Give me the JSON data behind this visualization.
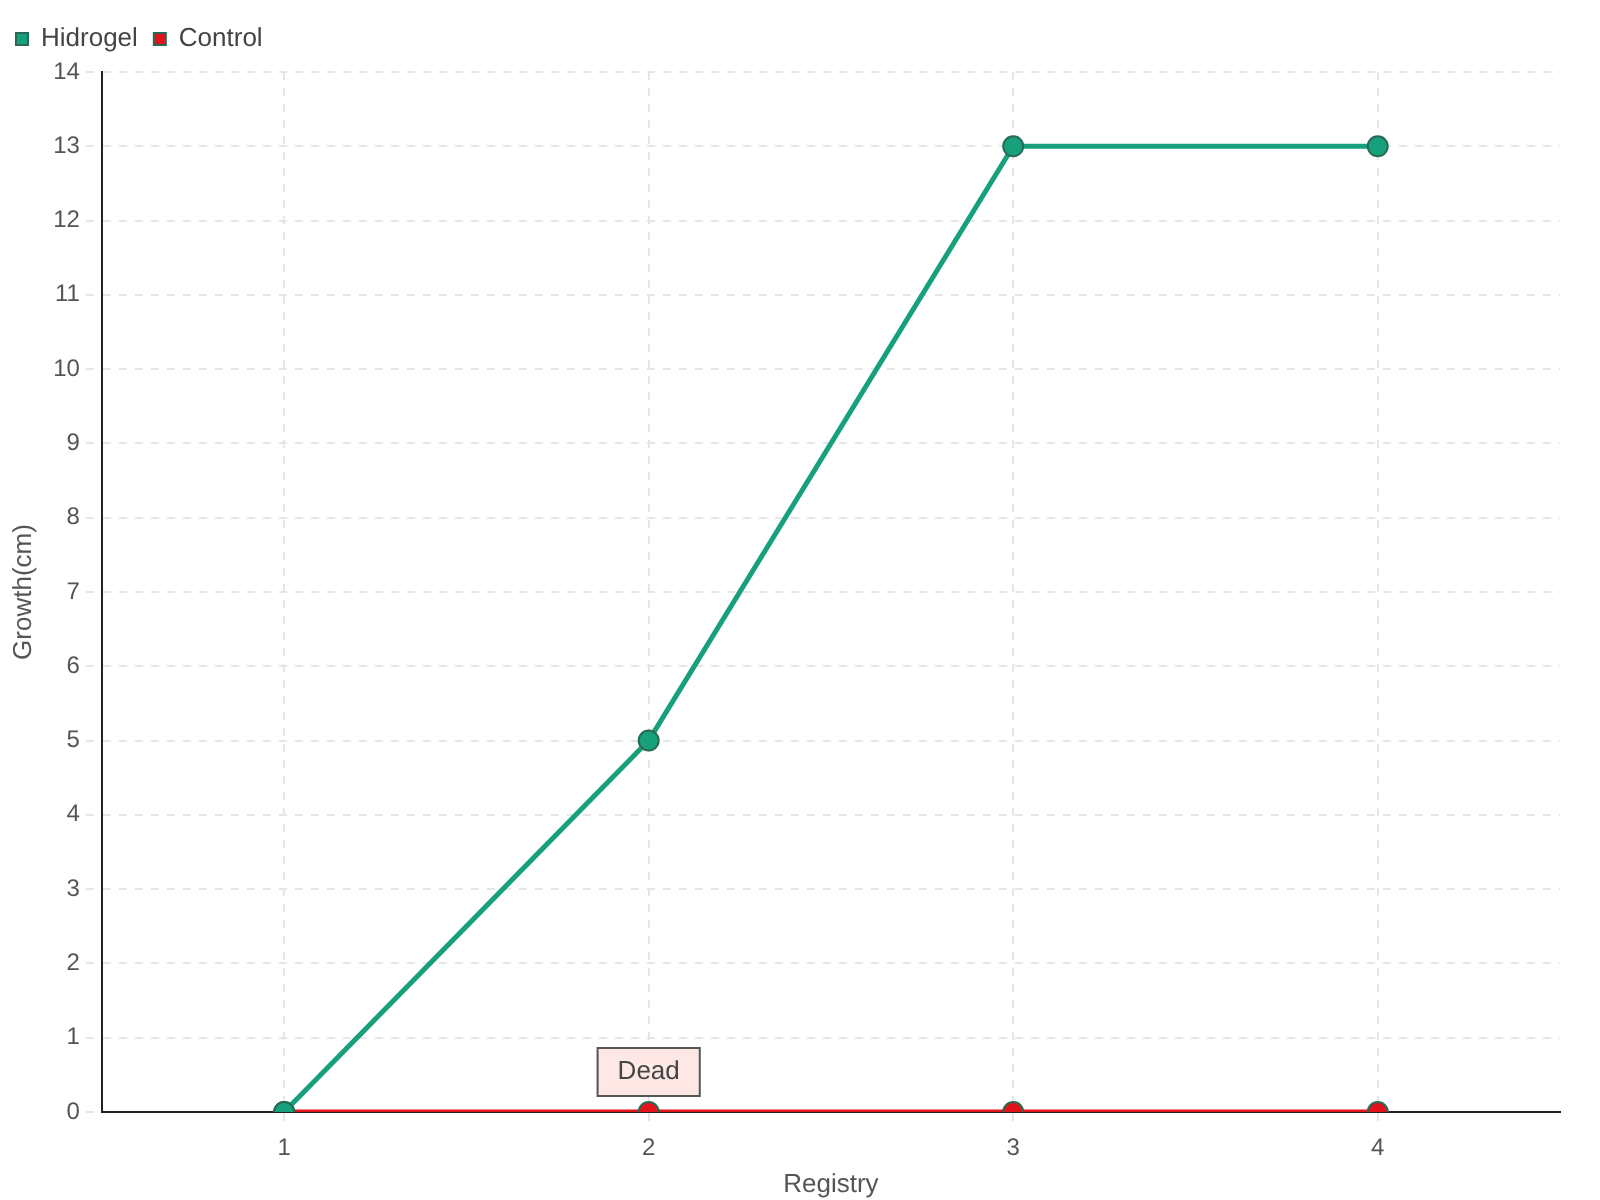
{
  "chart_data": {
    "type": "line",
    "xlabel": "Registry",
    "ylabel": "Growth(cm)",
    "categories": [
      "1",
      "2",
      "3",
      "4"
    ],
    "series": [
      {
        "name": "Hidrogel",
        "color": "#17a07c",
        "values": [
          0,
          5,
          13,
          13
        ]
      },
      {
        "name": "Control",
        "color": "#e3131b",
        "values": [
          0,
          0,
          0,
          0
        ]
      }
    ],
    "ylim": [
      0,
      14
    ],
    "yticks": [
      0,
      1,
      2,
      3,
      4,
      5,
      6,
      7,
      8,
      9,
      10,
      11,
      12,
      13,
      14
    ],
    "grid": true,
    "legend": "top left",
    "marker": "circle",
    "line_style": "solid",
    "annotations": [
      {
        "text": "Dead",
        "x": "2",
        "y": 0
      }
    ]
  }
}
